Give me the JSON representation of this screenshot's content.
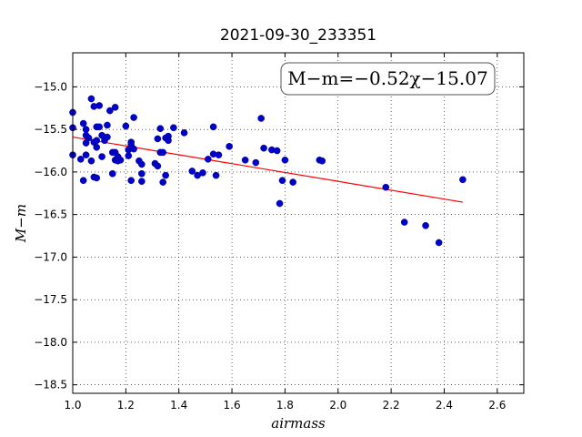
{
  "chart_data": {
    "type": "scatter",
    "title": "2021-09-30_233351",
    "xlabel": "airmass",
    "ylabel": "M−m",
    "annotation": "M−m=−0.52χ−15.07",
    "xlim": [
      1.0,
      2.7
    ],
    "ylim": [
      -18.6,
      -14.6
    ],
    "xticks": [
      1.0,
      1.2,
      1.4,
      1.6,
      1.8,
      2.0,
      2.2,
      2.4,
      2.6
    ],
    "xtick_labels": [
      "1.0",
      "1.2",
      "1.4",
      "1.6",
      "1.8",
      "2.0",
      "2.2",
      "2.4",
      "2.6"
    ],
    "yticks": [
      -15.0,
      -15.5,
      -16.0,
      -16.5,
      -17.0,
      -17.5,
      -18.0,
      -18.5
    ],
    "ytick_labels": [
      "−15.0",
      "−15.5",
      "−16.0",
      "−16.5",
      "−17.0",
      "−17.5",
      "−18.0",
      "−18.5"
    ],
    "grid": true,
    "point_color": "#0000cc",
    "fit_color": "#ff0000",
    "fit": {
      "slope": -0.52,
      "intercept": -15.07,
      "x_range": [
        1.0,
        2.47
      ]
    },
    "points": [
      [
        1.0,
        -15.3
      ],
      [
        1.0,
        -15.48
      ],
      [
        1.0,
        -15.8
      ],
      [
        1.03,
        -15.85
      ],
      [
        1.04,
        -15.43
      ],
      [
        1.04,
        -16.1
      ],
      [
        1.05,
        -15.5
      ],
      [
        1.05,
        -15.57
      ],
      [
        1.05,
        -15.66
      ],
      [
        1.05,
        -15.8
      ],
      [
        1.06,
        -15.6
      ],
      [
        1.07,
        -15.14
      ],
      [
        1.07,
        -15.87
      ],
      [
        1.08,
        -15.23
      ],
      [
        1.08,
        -15.65
      ],
      [
        1.08,
        -16.06
      ],
      [
        1.09,
        -15.47
      ],
      [
        1.09,
        -15.63
      ],
      [
        1.09,
        -15.71
      ],
      [
        1.09,
        -16.07
      ],
      [
        1.1,
        -15.22
      ],
      [
        1.1,
        -15.47
      ],
      [
        1.11,
        -15.57
      ],
      [
        1.11,
        -15.82
      ],
      [
        1.12,
        -15.63
      ],
      [
        1.13,
        -15.45
      ],
      [
        1.13,
        -15.59
      ],
      [
        1.14,
        -15.28
      ],
      [
        1.15,
        -15.77
      ],
      [
        1.15,
        -16.02
      ],
      [
        1.16,
        -15.86
      ],
      [
        1.16,
        -15.24
      ],
      [
        1.16,
        -15.77
      ],
      [
        1.17,
        -15.82
      ],
      [
        1.17,
        -15.87
      ],
      [
        1.18,
        -15.86
      ],
      [
        1.2,
        -15.46
      ],
      [
        1.21,
        -15.74
      ],
      [
        1.21,
        -15.81
      ],
      [
        1.22,
        -15.65
      ],
      [
        1.22,
        -15.68
      ],
      [
        1.22,
        -16.1
      ],
      [
        1.23,
        -15.36
      ],
      [
        1.23,
        -15.73
      ],
      [
        1.25,
        -15.87
      ],
      [
        1.26,
        -15.91
      ],
      [
        1.26,
        -16.02
      ],
      [
        1.26,
        -16.11
      ],
      [
        1.31,
        -15.9
      ],
      [
        1.32,
        -15.61
      ],
      [
        1.32,
        -15.93
      ],
      [
        1.33,
        -15.49
      ],
      [
        1.33,
        -15.77
      ],
      [
        1.34,
        -15.77
      ],
      [
        1.34,
        -16.12
      ],
      [
        1.35,
        -15.6
      ],
      [
        1.35,
        -16.04
      ],
      [
        1.36,
        -15.58
      ],
      [
        1.36,
        -15.63
      ],
      [
        1.38,
        -15.48
      ],
      [
        1.42,
        -15.54
      ],
      [
        1.45,
        -15.99
      ],
      [
        1.47,
        -16.04
      ],
      [
        1.49,
        -16.01
      ],
      [
        1.51,
        -15.85
      ],
      [
        1.53,
        -15.47
      ],
      [
        1.53,
        -15.79
      ],
      [
        1.54,
        -16.04
      ],
      [
        1.55,
        -15.8
      ],
      [
        1.59,
        -15.7
      ],
      [
        1.65,
        -15.86
      ],
      [
        1.69,
        -15.89
      ],
      [
        1.71,
        -15.37
      ],
      [
        1.72,
        -15.72
      ],
      [
        1.75,
        -15.74
      ],
      [
        1.77,
        -15.75
      ],
      [
        1.78,
        -16.37
      ],
      [
        1.79,
        -16.1
      ],
      [
        1.8,
        -15.86
      ],
      [
        1.83,
        -16.12
      ],
      [
        1.93,
        -15.86
      ],
      [
        1.94,
        -15.87
      ],
      [
        2.18,
        -16.18
      ],
      [
        2.25,
        -16.59
      ],
      [
        2.33,
        -16.63
      ],
      [
        2.38,
        -16.83
      ],
      [
        2.47,
        -16.09
      ]
    ]
  }
}
